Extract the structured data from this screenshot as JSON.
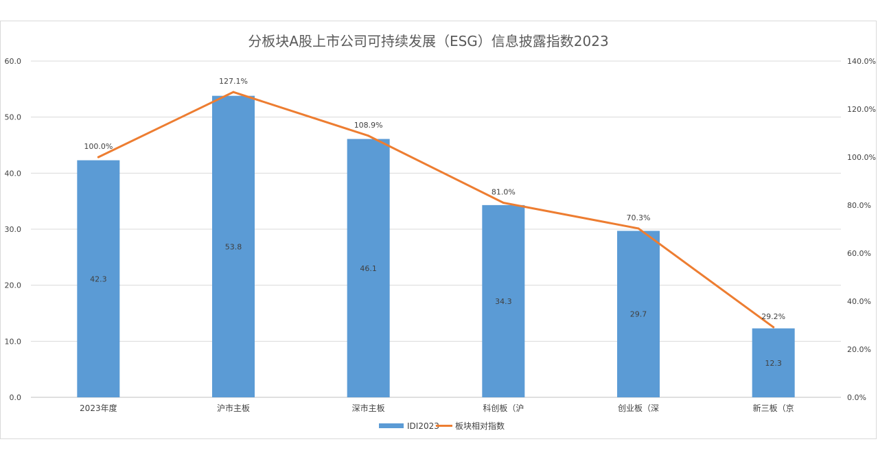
{
  "chart_data": {
    "type": "bar",
    "title": "分板块A股上市公司可持续发展（ESG）信息披露指数2023",
    "categories": [
      "2023年度",
      "沪市主板",
      "深市主板",
      "科创板（沪",
      "创业板（深",
      "新三板（京"
    ],
    "series": [
      {
        "name": "IDI2023",
        "type": "bar",
        "axis": "left",
        "color": "#5b9bd5",
        "values": [
          42.3,
          53.8,
          46.1,
          34.3,
          29.7,
          12.3
        ],
        "labels": [
          "42.3",
          "53.8",
          "46.1",
          "34.3",
          "29.7",
          "12.3"
        ]
      },
      {
        "name": "板块相对指数",
        "type": "line",
        "axis": "right",
        "color": "#ed7d31",
        "values": [
          100.0,
          127.1,
          108.9,
          81.0,
          70.3,
          29.2
        ],
        "labels": [
          "100.0%",
          "127.1%",
          "108.9%",
          "81.0%",
          "70.3%",
          "29.2%"
        ]
      }
    ],
    "y_left": {
      "min": 0,
      "max": 60,
      "step": 10,
      "tick_labels": [
        "0.0",
        "10.0",
        "20.0",
        "30.0",
        "40.0",
        "50.0",
        "60.0"
      ]
    },
    "y_right": {
      "min": 0,
      "max": 140,
      "step": 20,
      "tick_labels": [
        "0.0%",
        "20.0%",
        "40.0%",
        "60.0%",
        "80.0%",
        "100.0%",
        "120.0%",
        "140.0%"
      ]
    },
    "grid": true,
    "legend_position": "bottom"
  }
}
